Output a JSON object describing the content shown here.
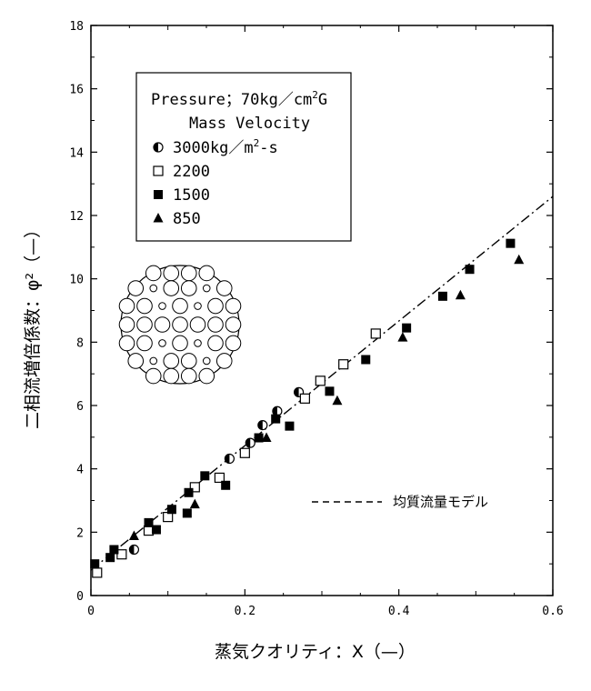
{
  "chart_data": {
    "type": "scatter",
    "xlabel": "蒸気クオリティ：X（—）",
    "ylabel": "二相流増倍係数：φ²（—）",
    "xlim": [
      0,
      0.6
    ],
    "ylim": [
      0,
      18
    ],
    "xticks": [
      0,
      0.2,
      0.4,
      0.6
    ],
    "xtick_labels": [
      "0",
      "0.2",
      "0.4",
      "0.6"
    ],
    "yticks": [
      0,
      2,
      4,
      6,
      8,
      10,
      12,
      14,
      16,
      18
    ],
    "ytick_labels": [
      "0",
      "2",
      "4",
      "6",
      "8",
      "10",
      "12",
      "14",
      "16",
      "18"
    ],
    "legend": {
      "title_line1": "Pressure；70kg／cm",
      "title_sup1": "2",
      "title_tail1": "G",
      "title_line2": "Mass Velocity",
      "unit_prefix": "kg／m",
      "unit_sup": "2",
      "unit_suffix": "-s"
    },
    "series": [
      {
        "name": "3000",
        "marker": "half-circle",
        "points": [
          [
            0.056,
            1.45
          ],
          [
            0.18,
            4.32
          ],
          [
            0.207,
            4.82
          ],
          [
            0.223,
            5.38
          ],
          [
            0.242,
            5.82
          ],
          [
            0.27,
            6.42
          ]
        ]
      },
      {
        "name": "2200",
        "marker": "open-square",
        "points": [
          [
            0.008,
            0.72
          ],
          [
            0.04,
            1.3
          ],
          [
            0.075,
            2.05
          ],
          [
            0.1,
            2.48
          ],
          [
            0.135,
            3.42
          ],
          [
            0.167,
            3.72
          ],
          [
            0.2,
            4.5
          ],
          [
            0.278,
            6.22
          ],
          [
            0.298,
            6.78
          ],
          [
            0.328,
            7.3
          ],
          [
            0.37,
            8.27
          ]
        ]
      },
      {
        "name": "1500",
        "marker": "filled-square",
        "points": [
          [
            0.005,
            1.0
          ],
          [
            0.025,
            1.2
          ],
          [
            0.03,
            1.45
          ],
          [
            0.075,
            2.3
          ],
          [
            0.085,
            2.08
          ],
          [
            0.105,
            2.72
          ],
          [
            0.125,
            2.6
          ],
          [
            0.127,
            3.25
          ],
          [
            0.148,
            3.78
          ],
          [
            0.175,
            3.48
          ],
          [
            0.218,
            4.98
          ],
          [
            0.24,
            5.58
          ],
          [
            0.258,
            5.35
          ],
          [
            0.31,
            6.45
          ],
          [
            0.357,
            7.45
          ],
          [
            0.41,
            8.45
          ],
          [
            0.457,
            9.45
          ],
          [
            0.492,
            10.3
          ],
          [
            0.545,
            11.12
          ]
        ]
      },
      {
        "name": " 850",
        "marker": "filled-triangle",
        "points": [
          [
            0.056,
            1.88
          ],
          [
            0.135,
            2.88
          ],
          [
            0.228,
            4.98
          ],
          [
            0.32,
            6.15
          ],
          [
            0.405,
            8.15
          ],
          [
            0.48,
            9.48
          ],
          [
            0.556,
            10.6
          ]
        ]
      }
    ],
    "model_line": {
      "name": "均質流量モデル",
      "style": "dash-dot",
      "points": [
        [
          0,
          0.8
        ],
        [
          0.6,
          12.6
        ]
      ]
    },
    "inset": "circular rod-bundle cross-section"
  }
}
